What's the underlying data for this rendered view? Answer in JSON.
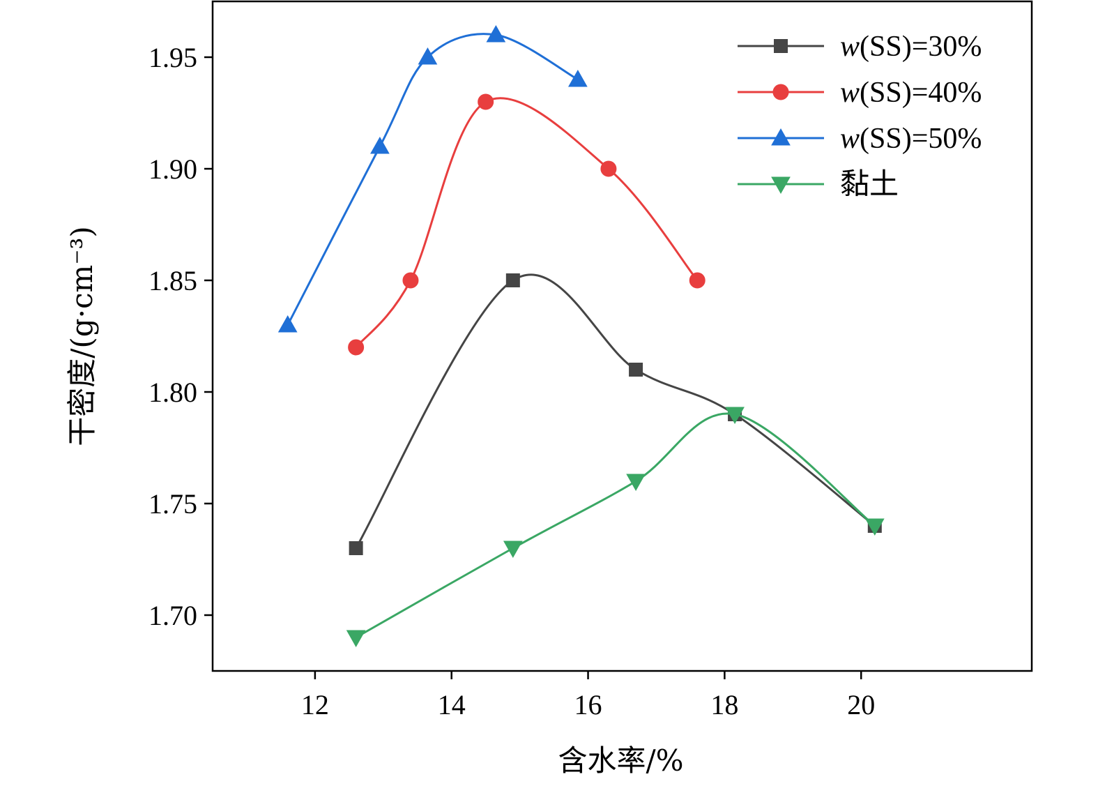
{
  "chart_data": {
    "type": "line",
    "xlabel": "含水率/%",
    "ylabel": "干密度/(g·cm⁻³)",
    "xlim": [
      10.5,
      22.5
    ],
    "ylim": [
      1.675,
      1.975
    ],
    "xticks": [
      12,
      14,
      16,
      18,
      20
    ],
    "yticks": [
      1.7,
      1.75,
      1.8,
      1.85,
      1.9,
      1.95
    ],
    "grid": false,
    "legend_position": "top-right",
    "series": [
      {
        "name": "w(SS)=30%",
        "name_italic": "w",
        "name_rest": "(SS)=30%",
        "color": "#454545",
        "marker": "square",
        "x": [
          12.6,
          14.9,
          16.7,
          18.15,
          20.2
        ],
        "y": [
          1.73,
          1.85,
          1.81,
          1.79,
          1.74
        ]
      },
      {
        "name": "w(SS)=40%",
        "name_italic": "w",
        "name_rest": "(SS)=40%",
        "color": "#e83e3e",
        "marker": "circle",
        "x": [
          12.6,
          13.4,
          14.5,
          16.3,
          17.6
        ],
        "y": [
          1.82,
          1.85,
          1.93,
          1.9,
          1.85
        ]
      },
      {
        "name": "w(SS)=50%",
        "name_italic": "w",
        "name_rest": "(SS)=50%",
        "color": "#1f6fd6",
        "marker": "triangle-up",
        "x": [
          11.6,
          12.95,
          13.65,
          14.65,
          15.85
        ],
        "y": [
          1.83,
          1.91,
          1.95,
          1.96,
          1.94
        ]
      },
      {
        "name": "黏土",
        "name_italic": "",
        "name_rest": "黏土",
        "color": "#3aa764",
        "marker": "triangle-down",
        "x": [
          12.6,
          14.9,
          16.7,
          18.15,
          20.2
        ],
        "y": [
          1.69,
          1.73,
          1.76,
          1.79,
          1.74
        ]
      }
    ]
  }
}
